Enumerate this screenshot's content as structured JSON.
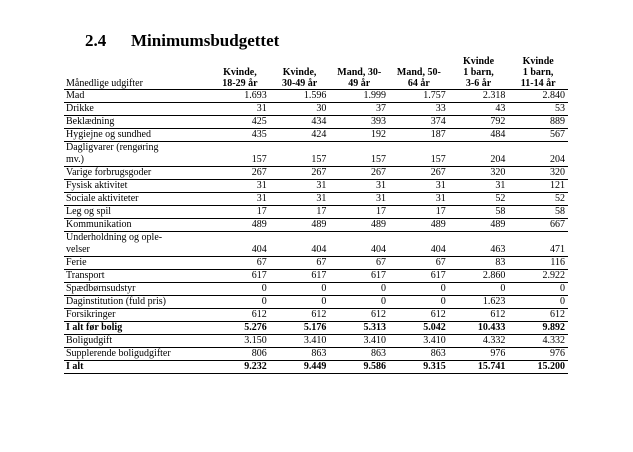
{
  "section": {
    "number": "2.4",
    "title": "Minimumsbudgettet"
  },
  "table": {
    "label_header": "Månedlige udgifter",
    "column_headers": [
      [
        "Kvinde,",
        "18-29 år"
      ],
      [
        "Kvinde,",
        "30-49 år"
      ],
      [
        "Mand, 30-",
        "49 år"
      ],
      [
        "Mand, 50-",
        "64 år"
      ],
      [
        "Kvinde",
        "1 barn,",
        "3-6 år"
      ],
      [
        "Kvinde",
        "1 barn,",
        "11-14 år"
      ]
    ],
    "rows": [
      {
        "label": "Mad",
        "values": [
          "1.693",
          "1.596",
          "1.999",
          "1.757",
          "2.318",
          "2.840"
        ]
      },
      {
        "label": "Drikke",
        "values": [
          "31",
          "30",
          "37",
          "33",
          "43",
          "53"
        ]
      },
      {
        "label": "Beklædning",
        "values": [
          "425",
          "434",
          "393",
          "374",
          "792",
          "889"
        ]
      },
      {
        "label": "Hygiejne og sundhed",
        "values": [
          "435",
          "424",
          "192",
          "187",
          "484",
          "567"
        ]
      },
      {
        "label_lines": [
          "Dagligvarer (rengøring",
          "mv.)"
        ],
        "values": [
          "157",
          "157",
          "157",
          "157",
          "204",
          "204"
        ]
      },
      {
        "label": "Varige forbrugsgoder",
        "values": [
          "267",
          "267",
          "267",
          "267",
          "320",
          "320"
        ]
      },
      {
        "label": "Fysisk aktivitet",
        "values": [
          "31",
          "31",
          "31",
          "31",
          "31",
          "121"
        ]
      },
      {
        "label": "Sociale aktiviteter",
        "values": [
          "31",
          "31",
          "31",
          "31",
          "52",
          "52"
        ]
      },
      {
        "label": "Leg og spil",
        "values": [
          "17",
          "17",
          "17",
          "17",
          "58",
          "58"
        ]
      },
      {
        "label": "Kommunikation",
        "values": [
          "489",
          "489",
          "489",
          "489",
          "489",
          "667"
        ]
      },
      {
        "label_lines": [
          "Underholdning og ople-",
          "velser"
        ],
        "values": [
          "404",
          "404",
          "404",
          "404",
          "463",
          "471"
        ]
      },
      {
        "label": "Ferie",
        "values": [
          "67",
          "67",
          "67",
          "67",
          "83",
          "116"
        ]
      },
      {
        "label": "Transport",
        "values": [
          "617",
          "617",
          "617",
          "617",
          "2.860",
          "2.922"
        ]
      },
      {
        "label": "Spædbørnsudstyr",
        "values": [
          "0",
          "0",
          "0",
          "0",
          "0",
          "0"
        ]
      },
      {
        "label": "Daginstitution (fuld pris)",
        "values": [
          "0",
          "0",
          "0",
          "0",
          "1.623",
          "0"
        ]
      },
      {
        "label": "Forsikringer",
        "values": [
          "612",
          "612",
          "612",
          "612",
          "612",
          "612"
        ]
      },
      {
        "label": "I alt før bolig",
        "bold": true,
        "values": [
          "5.276",
          "5.176",
          "5.313",
          "5.042",
          "10.433",
          "9.892"
        ]
      },
      {
        "label": "Boligudgift",
        "values": [
          "3.150",
          "3.410",
          "3.410",
          "3.410",
          "4.332",
          "4.332"
        ]
      },
      {
        "label": "Supplerende boligudgifter",
        "values": [
          "806",
          "863",
          "863",
          "863",
          "976",
          "976"
        ]
      },
      {
        "label": "I alt",
        "bold": true,
        "values": [
          "9.232",
          "9.449",
          "9.586",
          "9.315",
          "15.741",
          "15.200"
        ]
      }
    ]
  }
}
